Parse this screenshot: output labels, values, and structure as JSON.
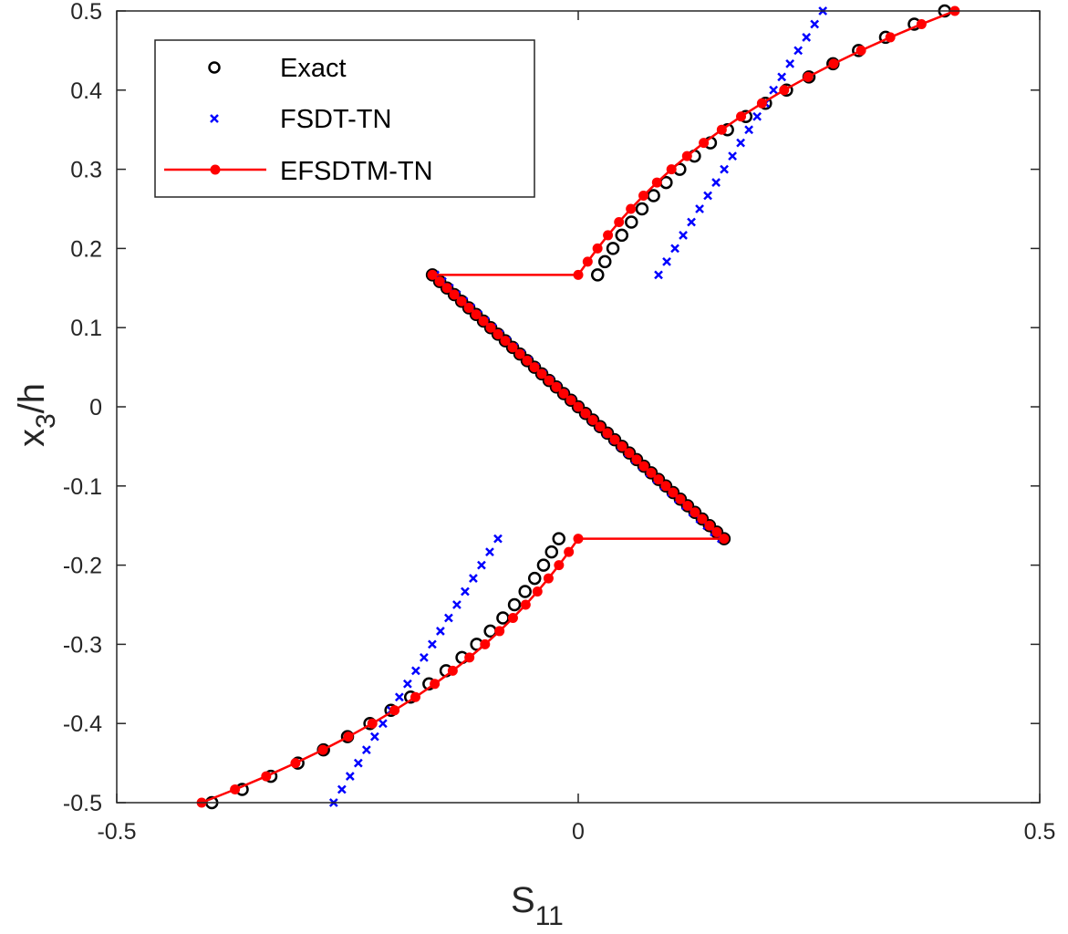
{
  "chart_data": {
    "type": "scatter",
    "xlabel": {
      "main": "S",
      "sub": "11"
    },
    "ylabel": {
      "main": "x",
      "sub": "3",
      "rest": "/h"
    },
    "xlim": [
      -0.5,
      0.5
    ],
    "ylim": [
      -0.5,
      0.5
    ],
    "xticks": [
      -0.5,
      0,
      0.5
    ],
    "xtick_labels": [
      "-0.5",
      "0",
      "0.5"
    ],
    "yticks": [
      -0.5,
      -0.4,
      -0.3,
      -0.2,
      -0.1,
      0,
      0.1,
      0.2,
      0.3,
      0.4,
      0.5
    ],
    "ytick_labels": [
      "-0.5",
      "-0.4",
      "-0.3",
      "-0.2",
      "-0.1",
      "0",
      "0.1",
      "0.2",
      "0.3",
      "0.4",
      "0.5"
    ],
    "grid": false,
    "legend_position": "top-left",
    "outer_layer_y": [
      0.16667,
      0.5
    ],
    "middle_layer": {
      "y": [
        0.16667,
        -0.16667
      ],
      "points": 41
    },
    "series": [
      {
        "name": "Exact",
        "marker": "circle",
        "color": "#000000",
        "line": false,
        "outer_x": [
          0.021,
          0.0289,
          0.0376,
          0.0472,
          0.0576,
          0.0691,
          0.0816,
          0.0952,
          0.11,
          0.1259,
          0.1432,
          0.1617,
          0.1816,
          0.2029,
          0.2257,
          0.25,
          0.276,
          0.3037,
          0.333,
          0.3641,
          0.397
        ],
        "middle_x": [
          -0.158,
          0.158
        ]
      },
      {
        "name": "FSDT-TN",
        "marker": "x",
        "color": "#0000ff",
        "line": false,
        "outer_x": [
          0.087,
          0.0959,
          0.1048,
          0.1137,
          0.1226,
          0.1315,
          0.1404,
          0.1493,
          0.1582,
          0.1671,
          0.176,
          0.1849,
          0.1938,
          0.2027,
          0.2116,
          0.2205,
          0.2294,
          0.2383,
          0.2472,
          0.2561,
          0.265
        ],
        "middle_x": [
          -0.155,
          0.155
        ]
      },
      {
        "name": "EFSDTM-TN",
        "marker": "dot",
        "color": "#ff0000",
        "line": true,
        "outer_x": [
          0,
          0.0102,
          0.0209,
          0.0322,
          0.0442,
          0.057,
          0.0707,
          0.0853,
          0.101,
          0.1179,
          0.136,
          0.1555,
          0.1764,
          0.199,
          0.2231,
          0.249,
          0.2767,
          0.3064,
          0.3381,
          0.3719,
          0.408
        ],
        "middle_x": [
          -0.158,
          0.158
        ]
      }
    ],
    "note_symmetry": "bottom layer = point reflection of top layer"
  }
}
